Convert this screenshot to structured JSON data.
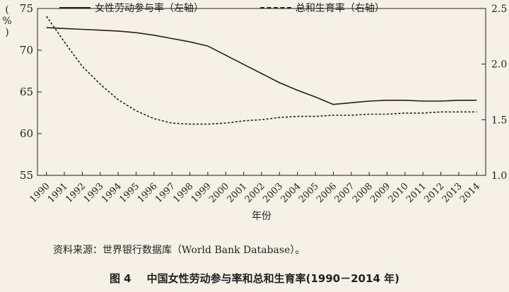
{
  "chart_data": {
    "type": "line",
    "x": [
      "1990",
      "1991",
      "1992",
      "1993",
      "1994",
      "1995",
      "1996",
      "1997",
      "1998",
      "1999",
      "2000",
      "2001",
      "2002",
      "2003",
      "2004",
      "2005",
      "2006",
      "2007",
      "2008",
      "2009",
      "2010",
      "2011",
      "2012",
      "2013",
      "2014"
    ],
    "series": [
      {
        "name": "女性劳动参与率（左轴）",
        "axis": "left",
        "style": "solid",
        "values": [
          72.7,
          72.6,
          72.5,
          72.4,
          72.3,
          72.1,
          71.8,
          71.4,
          71.0,
          70.5,
          69.4,
          68.3,
          67.2,
          66.1,
          65.2,
          64.4,
          63.5,
          63.7,
          63.9,
          64.0,
          64.0,
          63.9,
          63.9,
          64.0,
          64.0
        ]
      },
      {
        "name": "总和生育率（右轴）",
        "axis": "right",
        "style": "dashed",
        "values": [
          2.43,
          2.2,
          1.98,
          1.82,
          1.68,
          1.58,
          1.51,
          1.47,
          1.46,
          1.46,
          1.47,
          1.49,
          1.5,
          1.52,
          1.53,
          1.53,
          1.54,
          1.54,
          1.55,
          1.55,
          1.56,
          1.56,
          1.57,
          1.57,
          1.57
        ]
      }
    ],
    "xlabel": "年份",
    "ylabel": "%",
    "y_left_lim": [
      55,
      75
    ],
    "y_left_ticks": [
      55,
      60,
      65,
      70,
      75
    ],
    "y_right_lim": [
      1.0,
      2.5
    ],
    "y_right_ticks": [
      "1.0",
      "1.5",
      "2.0",
      "2.5"
    ],
    "grid": false,
    "legend_position": "top"
  },
  "source_note": "资料来源：世界银行数据库（World Bank Database）。",
  "caption": {
    "number": "图 4",
    "title": "中国女性劳动参与率和总和生育率(1990－2014 年)"
  }
}
